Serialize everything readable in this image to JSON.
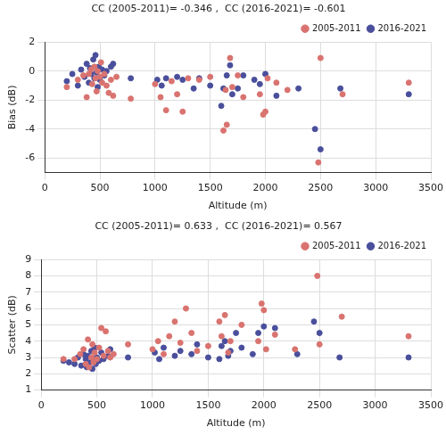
{
  "chart_data": [
    {
      "type": "scatter",
      "title": "CC (2005-2011)= -0.346 ,  CC (2016-2021)= -0.601",
      "x_label": "Altitude (m)",
      "y_label": "Bias (dB)",
      "xlim": [
        0,
        3500
      ],
      "xticks": [
        0,
        500,
        1000,
        1500,
        2000,
        2500,
        3000,
        3500
      ],
      "ylim": [
        -7,
        2
      ],
      "yticks": [
        -6,
        -4,
        -2,
        0,
        2
      ],
      "grid": true,
      "legend": "upper right",
      "marker": "circle",
      "series": [
        {
          "name": "2005-2011",
          "color": "#d9736f",
          "x": [
            200,
            300,
            350,
            380,
            400,
            420,
            430,
            450,
            460,
            470,
            480,
            500,
            510,
            520,
            540,
            560,
            580,
            600,
            620,
            650,
            780,
            1000,
            1050,
            1100,
            1150,
            1200,
            1250,
            1300,
            1400,
            1500,
            1620,
            1640,
            1650,
            1680,
            1700,
            1750,
            1800,
            1950,
            1980,
            2000,
            2020,
            2100,
            2200,
            2480,
            2500,
            2700,
            3300
          ],
          "values": [
            -1.1,
            -0.6,
            -0.3,
            -1.8,
            -0.2,
            0.1,
            -0.9,
            0.3,
            -0.5,
            -1.4,
            0.0,
            -0.4,
            0.6,
            -0.8,
            -0.2,
            -1.0,
            -1.5,
            -0.6,
            -1.7,
            -0.4,
            -1.9,
            -0.9,
            -1.8,
            -2.7,
            -0.7,
            -1.6,
            -2.8,
            -0.5,
            -0.6,
            -0.4,
            -4.1,
            -1.3,
            -3.7,
            0.9,
            -1.1,
            -0.3,
            -1.8,
            -1.6,
            -3.0,
            -2.8,
            -0.5,
            -0.8,
            -1.3,
            -6.3,
            0.9,
            -1.6,
            -0.8
          ]
        },
        {
          "name": "2016-2021",
          "color": "#4a4f9c",
          "x": [
            200,
            250,
            300,
            330,
            360,
            380,
            400,
            410,
            420,
            440,
            450,
            460,
            470,
            480,
            490,
            500,
            520,
            540,
            560,
            600,
            620,
            780,
            1020,
            1060,
            1100,
            1200,
            1250,
            1350,
            1400,
            1500,
            1600,
            1620,
            1650,
            1680,
            1700,
            1750,
            1800,
            1900,
            1950,
            2000,
            2100,
            2300,
            2450,
            2500,
            2680,
            3300
          ],
          "values": [
            -0.7,
            -0.2,
            -1.0,
            0.1,
            -0.4,
            0.5,
            -0.8,
            0.2,
            -0.2,
            0.8,
            -0.5,
            1.1,
            -0.1,
            -1.1,
            0.3,
            -0.6,
            0.1,
            -0.3,
            0.0,
            0.3,
            0.5,
            -0.5,
            -0.6,
            -1.0,
            -0.5,
            -0.4,
            -0.6,
            -1.2,
            -0.5,
            -1.0,
            -2.4,
            -1.2,
            -0.3,
            0.4,
            -1.6,
            -1.2,
            -0.3,
            -0.6,
            -0.9,
            -0.2,
            -1.7,
            -1.2,
            -4.0,
            -5.4,
            -1.2,
            -1.6
          ]
        }
      ]
    },
    {
      "type": "scatter",
      "title": "CC (2005-2011)= 0.633 ,  CC (2016-2021)= 0.567",
      "x_label": "Altitude (m)",
      "y_label": "Scatter (dB)",
      "xlim": [
        0,
        3500
      ],
      "xticks": [
        0,
        500,
        1000,
        1500,
        2000,
        2500,
        3000,
        3500
      ],
      "ylim": [
        1,
        9
      ],
      "yticks": [
        1,
        2,
        3,
        4,
        5,
        6,
        7,
        8,
        9
      ],
      "grid": true,
      "legend": "upper right",
      "marker": "circle",
      "series": [
        {
          "name": "2005-2011",
          "color": "#d9736f",
          "x": [
            200,
            300,
            350,
            380,
            400,
            420,
            430,
            450,
            460,
            470,
            480,
            500,
            520,
            540,
            560,
            580,
            600,
            620,
            650,
            780,
            1000,
            1050,
            1100,
            1150,
            1200,
            1250,
            1300,
            1350,
            1400,
            1500,
            1600,
            1620,
            1650,
            1680,
            1700,
            1800,
            1950,
            1980,
            2000,
            2020,
            2100,
            2280,
            2480,
            2500,
            2700,
            3300
          ],
          "values": [
            2.9,
            2.9,
            3.2,
            3.5,
            2.6,
            4.1,
            2.4,
            3.0,
            3.8,
            2.7,
            3.3,
            2.9,
            3.6,
            4.8,
            3.1,
            4.6,
            3.4,
            3.0,
            3.2,
            3.8,
            3.5,
            4.0,
            3.2,
            4.3,
            5.2,
            3.9,
            6.0,
            4.5,
            3.4,
            3.7,
            5.2,
            4.3,
            5.6,
            3.3,
            4.0,
            5.0,
            4.0,
            6.3,
            5.9,
            3.5,
            4.4,
            3.5,
            8.0,
            3.8,
            5.5,
            4.3
          ]
        },
        {
          "name": "2016-2021",
          "color": "#4a4f9c",
          "x": [
            200,
            250,
            300,
            330,
            360,
            380,
            400,
            410,
            420,
            440,
            450,
            460,
            470,
            480,
            490,
            500,
            520,
            540,
            560,
            600,
            620,
            780,
            1020,
            1060,
            1100,
            1200,
            1250,
            1350,
            1400,
            1500,
            1600,
            1620,
            1650,
            1680,
            1700,
            1750,
            1800,
            1900,
            1950,
            2000,
            2100,
            2300,
            2450,
            2500,
            2680,
            3300
          ],
          "values": [
            2.8,
            2.7,
            2.6,
            3.0,
            2.5,
            3.2,
            2.9,
            2.4,
            3.1,
            2.7,
            3.4,
            2.3,
            2.9,
            3.6,
            2.6,
            3.0,
            2.8,
            3.3,
            2.9,
            3.1,
            3.5,
            3.0,
            3.3,
            2.9,
            3.6,
            3.1,
            3.4,
            3.2,
            3.8,
            3.0,
            2.9,
            3.7,
            4.0,
            3.1,
            3.4,
            4.5,
            3.6,
            3.2,
            4.5,
            4.9,
            4.8,
            3.2,
            5.2,
            4.5,
            3.0,
            3.0
          ]
        }
      ]
    }
  ]
}
